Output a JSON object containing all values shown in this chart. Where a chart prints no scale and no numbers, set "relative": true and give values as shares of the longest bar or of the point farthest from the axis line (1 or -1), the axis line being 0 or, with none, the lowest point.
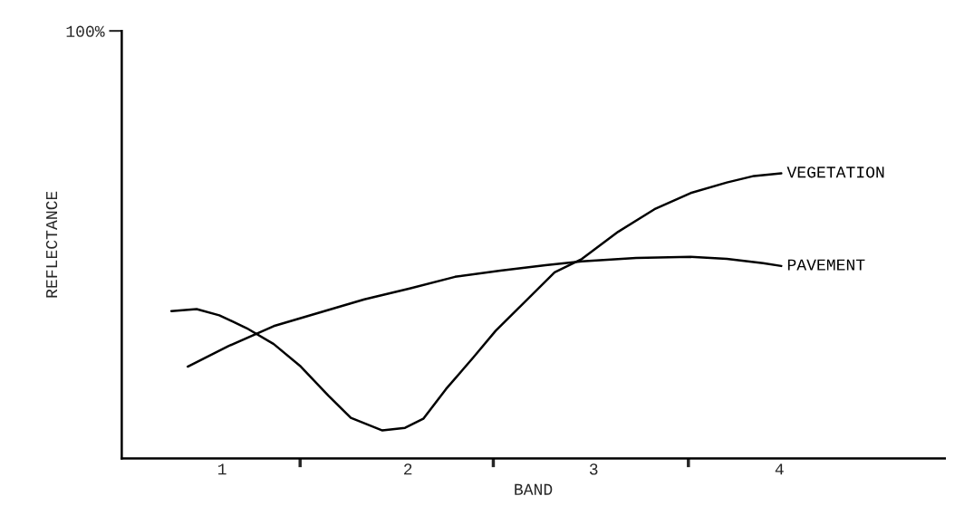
{
  "chart_data": {
    "type": "line",
    "relative": true,
    "xlabel": "BAND",
    "ylabel": "REFLECTANCE",
    "annotations": [
      "100%"
    ],
    "xlim": [
      0.46,
      4.89
    ],
    "xticks": [
      1,
      {
        "value": 1.42,
        "label": null
      },
      2,
      {
        "value": 2.46,
        "label": null
      },
      3,
      {
        "value": 3.51,
        "label": null
      },
      4
    ],
    "grid": false,
    "legend": false,
    "marker": "none",
    "line_style": "solid",
    "series": [
      {
        "name": "VEGETATION",
        "color": "#000000",
        "x": [
          0.727,
          0.863,
          0.985,
          1.132,
          1.278,
          1.424,
          1.571,
          1.693,
          1.863,
          1.985,
          2.083,
          2.205,
          2.351,
          2.473,
          2.644,
          2.79,
          2.937,
          3.132,
          3.327,
          3.522,
          3.717,
          3.863,
          4.01
        ],
        "values": [
          0.517,
          0.524,
          0.502,
          0.457,
          0.401,
          0.322,
          0.221,
          0.142,
          0.098,
          0.107,
          0.139,
          0.243,
          0.353,
          0.448,
          0.558,
          0.653,
          0.7,
          0.795,
          0.874,
          0.931,
          0.968,
          0.991,
          1
        ]
      },
      {
        "name": "PAVEMENT",
        "color": "#000000",
        "x": [
          0.815,
          1.034,
          1.278,
          1.522,
          1.766,
          2.01,
          2.254,
          2.498,
          2.741,
          2.937,
          3.229,
          3.522,
          3.717,
          3.912,
          4.01
        ],
        "values": [
          0.322,
          0.394,
          0.464,
          0.511,
          0.558,
          0.596,
          0.637,
          0.659,
          0.678,
          0.691,
          0.703,
          0.707,
          0.7,
          0.685,
          0.675
        ]
      }
    ]
  }
}
